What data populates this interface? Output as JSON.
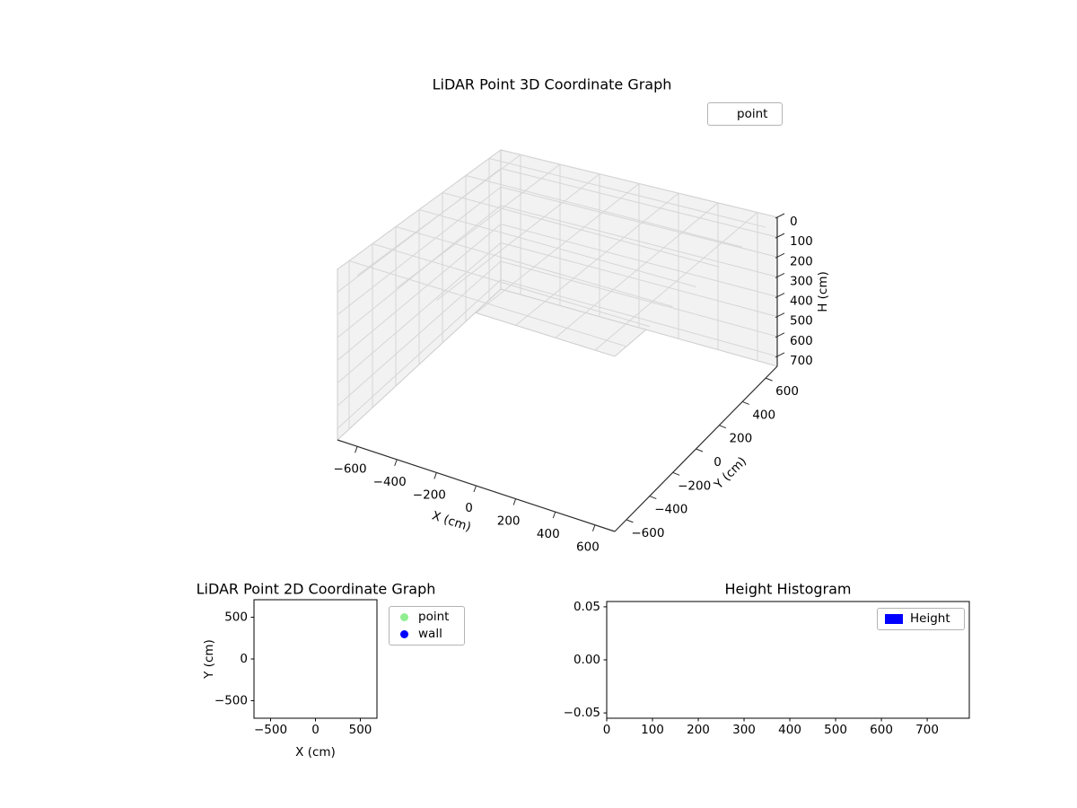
{
  "figure": {
    "background": "#ffffff"
  },
  "chart_data": [
    {
      "id": "lidar-3d",
      "type": "scatter3d",
      "title": "LiDAR Point 3D Coordinate Graph",
      "xlabel": "X (cm)",
      "ylabel": "Y (cm)",
      "zlabel": "H (cm)",
      "xlim": [
        -700,
        700
      ],
      "ylim": [
        -700,
        700
      ],
      "zlim": [
        0,
        750
      ],
      "zaxis_inverted": true,
      "grid": true,
      "x_ticks": {
        "values": [
          -600,
          -400,
          -200,
          0,
          200,
          400,
          600
        ],
        "labels": [
          "−600",
          "−400",
          "−200",
          "0",
          "200",
          "400",
          "600"
        ]
      },
      "y_ticks": {
        "values": [
          -600,
          -400,
          -200,
          0,
          200,
          400,
          600
        ],
        "labels": [
          "−600",
          "−400",
          "−200",
          "0",
          "200",
          "400",
          "600"
        ]
      },
      "z_ticks": {
        "values": [
          0,
          100,
          200,
          300,
          400,
          500,
          600,
          700
        ],
        "labels": [
          "0",
          "100",
          "200",
          "300",
          "400",
          "500",
          "600",
          "700"
        ]
      },
      "legend": [
        {
          "label": "point",
          "marker": "dot",
          "marker_color": "#ffffff"
        }
      ],
      "points": [],
      "colors": {
        "pane": "#f2f2f2",
        "pane_edge": "#cccccc",
        "grid": "#d6d6d6",
        "spine": "#2b2b2b",
        "text": "#000000"
      }
    },
    {
      "id": "lidar-2d",
      "type": "scatter",
      "title": "LiDAR Point 2D Coordinate Graph",
      "xlabel": "X (cm)",
      "ylabel": "Y (cm)",
      "xlim": [
        -685,
        685
      ],
      "ylim": [
        -710,
        710
      ],
      "grid": false,
      "x_ticks": {
        "values": [
          -500,
          0,
          500
        ],
        "labels": [
          "−500",
          "0",
          "500"
        ]
      },
      "y_ticks": {
        "values": [
          -500,
          0,
          500
        ],
        "labels": [
          "−500",
          "0",
          "500"
        ]
      },
      "legend": [
        {
          "label": "point",
          "marker": "dot",
          "marker_color": "#90ee90"
        },
        {
          "label": "wall",
          "marker": "dot",
          "marker_color": "#0000ff"
        }
      ],
      "points": []
    },
    {
      "id": "height-histogram",
      "type": "histogram",
      "title": "Height Histogram",
      "xlabel": "",
      "ylabel": "",
      "xlim": [
        0,
        792
      ],
      "ylim": [
        -0.055,
        0.055
      ],
      "grid": false,
      "x_ticks": {
        "values": [
          0,
          100,
          200,
          300,
          400,
          500,
          600,
          700
        ],
        "labels": [
          "0",
          "100",
          "200",
          "300",
          "400",
          "500",
          "600",
          "700"
        ]
      },
      "y_ticks": {
        "values": [
          -0.05,
          0,
          0.05
        ],
        "labels": [
          "−0.05",
          "0.00",
          "0.05"
        ]
      },
      "legend": [
        {
          "label": "Height",
          "marker": "rect",
          "marker_color": "#0000ff"
        }
      ],
      "bars": []
    }
  ]
}
